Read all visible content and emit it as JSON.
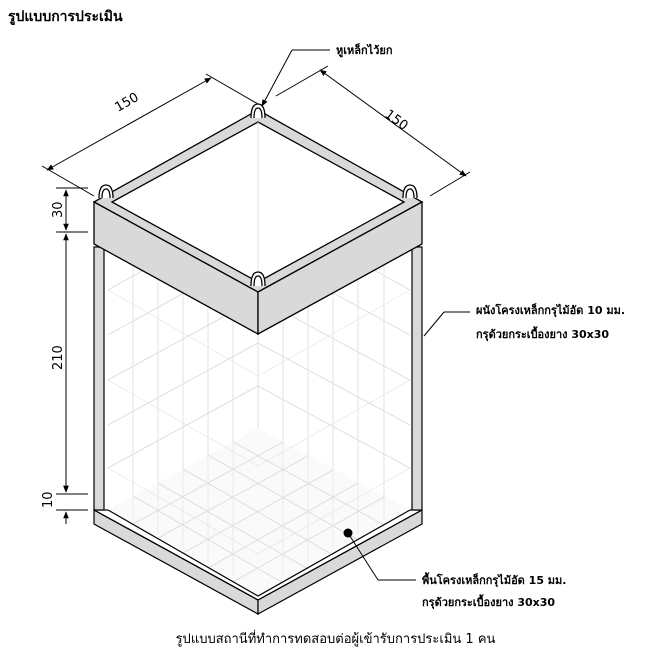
{
  "title": "รูปแบบการประเมิน",
  "caption": "รูปแบบสถานีที่ทำการทดสอบต่อผู้เข้ารับการประเมิน 1 คน",
  "dimensions": {
    "width_left": "150",
    "width_right": "150",
    "top_band": "30",
    "wall_height": "210",
    "floor_thickness": "10"
  },
  "labels": {
    "hook": "หูเหล็กไว้ยก",
    "wall_line1": "ผนังโครงเหล็กกรุไม้อัด 10 มม.",
    "wall_line2": "กรุด้วยกระเบื้องยาง 30x30",
    "floor_line1": "พื้นโครงเหล็กกรุไม้อัด 15 มม.",
    "floor_line2": "กรุด้วยกระเบื้องยาง 30x30"
  },
  "colors": {
    "frame": "#d9d9d9",
    "grid": "#d8d8d8",
    "line": "#000000"
  }
}
